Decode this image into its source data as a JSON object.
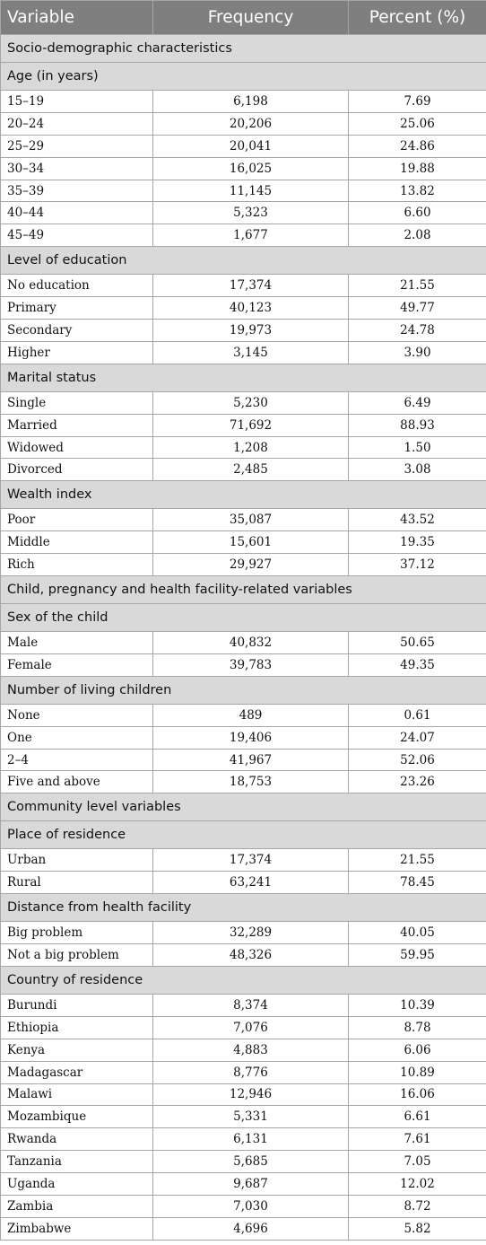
{
  "headers": [
    "Variable",
    "Frequency",
    "Percent (%)"
  ],
  "body": [
    {
      "kind": "section",
      "label": "Socio-demographic characteristics"
    },
    {
      "kind": "group",
      "label": "Age (in years)"
    },
    {
      "kind": "data",
      "cells": [
        "15–19",
        "6,198",
        "7.69"
      ]
    },
    {
      "kind": "data",
      "cells": [
        "20–24",
        "20,206",
        "25.06"
      ]
    },
    {
      "kind": "data",
      "cells": [
        "25–29",
        "20,041",
        "24.86"
      ]
    },
    {
      "kind": "data",
      "cells": [
        "30–34",
        "16,025",
        "19.88"
      ]
    },
    {
      "kind": "data",
      "cells": [
        "35–39",
        "11,145",
        "13.82"
      ]
    },
    {
      "kind": "data",
      "cells": [
        "40–44",
        "5,323",
        "6.60"
      ]
    },
    {
      "kind": "data",
      "cells": [
        "45–49",
        "1,677",
        "2.08"
      ]
    },
    {
      "kind": "group",
      "label": "Level of education"
    },
    {
      "kind": "data",
      "cells": [
        "No education",
        "17,374",
        "21.55"
      ]
    },
    {
      "kind": "data",
      "cells": [
        "Primary",
        "40,123",
        "49.77"
      ]
    },
    {
      "kind": "data",
      "cells": [
        "Secondary",
        "19,973",
        "24.78"
      ]
    },
    {
      "kind": "data",
      "cells": [
        "Higher",
        "3,145",
        "3.90"
      ]
    },
    {
      "kind": "group",
      "label": "Marital status"
    },
    {
      "kind": "data",
      "cells": [
        "Single",
        "5,230",
        "6.49"
      ]
    },
    {
      "kind": "data",
      "cells": [
        "Married",
        "71,692",
        "88.93"
      ]
    },
    {
      "kind": "data",
      "cells": [
        "Widowed",
        "1,208",
        "1.50"
      ]
    },
    {
      "kind": "data",
      "cells": [
        "Divorced",
        "2,485",
        "3.08"
      ]
    },
    {
      "kind": "group",
      "label": "Wealth index"
    },
    {
      "kind": "data",
      "cells": [
        "Poor",
        "35,087",
        "43.52"
      ]
    },
    {
      "kind": "data",
      "cells": [
        "Middle",
        "15,601",
        "19.35"
      ]
    },
    {
      "kind": "data",
      "cells": [
        "Rich",
        "29,927",
        "37.12"
      ]
    },
    {
      "kind": "section",
      "label": "Child, pregnancy and health facility-related variables"
    },
    {
      "kind": "group",
      "label": "Sex of the child"
    },
    {
      "kind": "data",
      "cells": [
        "Male",
        "40,832",
        "50.65"
      ]
    },
    {
      "kind": "data",
      "cells": [
        "Female",
        "39,783",
        "49.35"
      ]
    },
    {
      "kind": "group",
      "label": "Number of living children"
    },
    {
      "kind": "data",
      "cells": [
        "None",
        "489",
        "0.61"
      ]
    },
    {
      "kind": "data",
      "cells": [
        "One",
        "19,406",
        "24.07"
      ]
    },
    {
      "kind": "data",
      "cells": [
        "2–4",
        "41,967",
        "52.06"
      ]
    },
    {
      "kind": "data",
      "cells": [
        "Five and above",
        "18,753",
        "23.26"
      ]
    },
    {
      "kind": "section",
      "label": "Community level variables"
    },
    {
      "kind": "group",
      "label": "Place of residence"
    },
    {
      "kind": "data",
      "cells": [
        "Urban",
        "17,374",
        "21.55"
      ]
    },
    {
      "kind": "data",
      "cells": [
        "Rural",
        "63,241",
        "78.45"
      ]
    },
    {
      "kind": "group",
      "label": "Distance from health facility"
    },
    {
      "kind": "data",
      "cells": [
        "Big problem",
        "32,289",
        "40.05"
      ]
    },
    {
      "kind": "data",
      "cells": [
        "Not a big problem",
        "48,326",
        "59.95"
      ]
    },
    {
      "kind": "group",
      "label": "Country of residence"
    },
    {
      "kind": "data",
      "cells": [
        "Burundi",
        "8,374",
        "10.39"
      ]
    },
    {
      "kind": "data",
      "cells": [
        "Ethiopia",
        "7,076",
        "8.78"
      ]
    },
    {
      "kind": "data",
      "cells": [
        "Kenya",
        "4,883",
        "6.06"
      ]
    },
    {
      "kind": "data",
      "cells": [
        "Madagascar",
        "8,776",
        "10.89"
      ]
    },
    {
      "kind": "data",
      "cells": [
        "Malawi",
        "12,946",
        "16.06"
      ]
    },
    {
      "kind": "data",
      "cells": [
        "Mozambique",
        "5,331",
        "6.61"
      ]
    },
    {
      "kind": "data",
      "cells": [
        "Rwanda",
        "6,131",
        "7.61"
      ]
    },
    {
      "kind": "data",
      "cells": [
        "Tanzania",
        "5,685",
        "7.05"
      ]
    },
    {
      "kind": "data",
      "cells": [
        "Uganda",
        "9,687",
        "12.02"
      ]
    },
    {
      "kind": "data",
      "cells": [
        "Zambia",
        "7,030",
        "8.72"
      ]
    },
    {
      "kind": "data",
      "cells": [
        "Zimbabwe",
        "4,696",
        "5.82"
      ]
    }
  ]
}
